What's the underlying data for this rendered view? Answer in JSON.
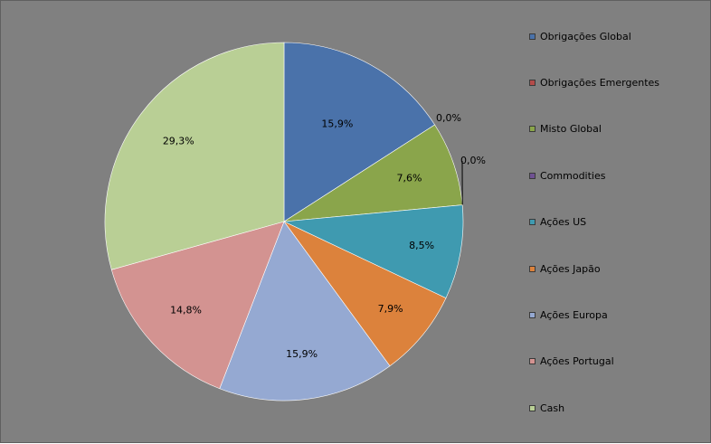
{
  "chart_data": {
    "type": "pie",
    "title": "",
    "categories": [
      "Obrigações Global",
      "Obrigações Emergentes",
      "Misto Global",
      "Commodities",
      "Ações US",
      "Ações Japão",
      "Ações Europa",
      "Ações Portugal",
      "Cash"
    ],
    "values": [
      15.9,
      0.0,
      7.6,
      0.0,
      8.5,
      7.9,
      15.9,
      14.8,
      29.3
    ],
    "labels": [
      "15,9%",
      "0,0%",
      "7,6%",
      "0,0%",
      "8,5%",
      "7,9%",
      "15,9%",
      "14,8%",
      "29,3%"
    ],
    "colors": [
      "#4a72aa",
      "#b44b49",
      "#8aa54b",
      "#6f5192",
      "#3f9ab0",
      "#dc823c",
      "#95a9d2",
      "#d39391",
      "#b9cf95"
    ],
    "legend_position": "right",
    "background": "#808080"
  }
}
